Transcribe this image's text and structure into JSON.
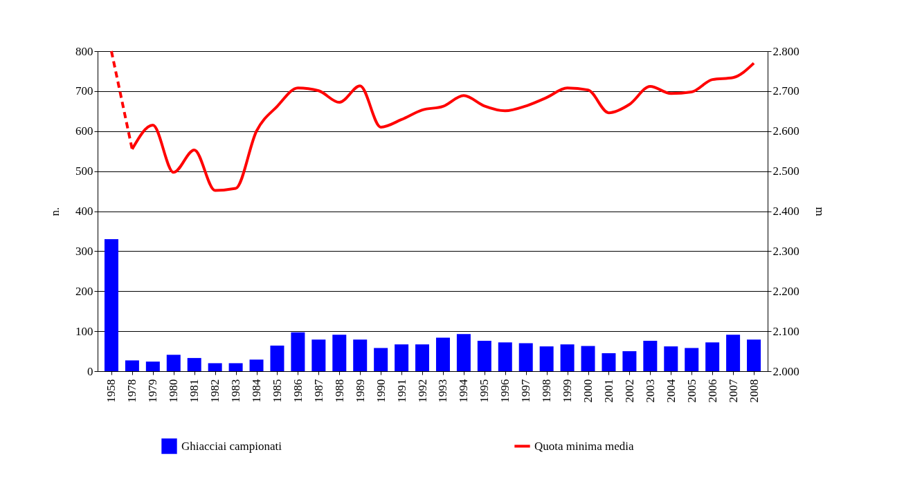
{
  "chart_data": {
    "type": "bar",
    "ylabel": "n.",
    "y2label": "m",
    "grid": "y",
    "legend": "bottom",
    "categories": [
      "1958",
      "1978",
      "1979",
      "1980",
      "1981",
      "1982",
      "1983",
      "1984",
      "1985",
      "1986",
      "1987",
      "1988",
      "1989",
      "1990",
      "1991",
      "1992",
      "1993",
      "1994",
      "1995",
      "1996",
      "1997",
      "1998",
      "1999",
      "2000",
      "2001",
      "2002",
      "2003",
      "2004",
      "2005",
      "2006",
      "2007",
      "2008"
    ],
    "ylim": [
      0,
      800
    ],
    "yticks": [
      0,
      100,
      200,
      300,
      400,
      500,
      600,
      700,
      800
    ],
    "y2lim": [
      2000,
      2800
    ],
    "y2ticks": [
      {
        "value": 2000,
        "label": "2.000"
      },
      {
        "value": 2100,
        "label": "2.100"
      },
      {
        "value": 2200,
        "label": "2.200"
      },
      {
        "value": 2300,
        "label": "2.300"
      },
      {
        "value": 2400,
        "label": "2.400"
      },
      {
        "value": 2500,
        "label": "2.500"
      },
      {
        "value": 2600,
        "label": "2.600"
      },
      {
        "value": 2700,
        "label": "2.700"
      },
      {
        "value": 2800,
        "label": "2.800"
      }
    ],
    "series": [
      {
        "name": "Ghiacciai campionati",
        "color": "#0000ff",
        "values": [
          330,
          27,
          24,
          41,
          33,
          20,
          20,
          29,
          64,
          97,
          79,
          91,
          79,
          58,
          67,
          67,
          84,
          93,
          76,
          72,
          70,
          62,
          67,
          63,
          45,
          50,
          76,
          62,
          58,
          72,
          91,
          79
        ]
      },
      {
        "name": "Quota minima media",
        "type": "line",
        "axis": "y2",
        "color": "#ff0000",
        "line_style": "solid",
        "values": [
          null,
          2555,
          2615,
          2497,
          2553,
          2452,
          2457,
          2600,
          2662,
          2708,
          2701,
          2672,
          2713,
          2610,
          2629,
          2653,
          2662,
          2689,
          2663,
          2651,
          2663,
          2684,
          2708,
          2703,
          2646,
          2667,
          2712,
          2694,
          2698,
          2729,
          2734,
          2770
        ]
      },
      {
        "type": "line",
        "axis": "y2",
        "color": "#ff0000",
        "line_style": "dashed",
        "values": [
          2800,
          2555,
          null,
          null,
          null,
          null,
          null,
          null,
          null,
          null,
          null,
          null,
          null,
          null,
          null,
          null,
          null,
          null,
          null,
          null,
          null,
          null,
          null,
          null,
          null,
          null,
          null,
          null,
          null,
          null,
          null,
          null
        ]
      }
    ]
  }
}
